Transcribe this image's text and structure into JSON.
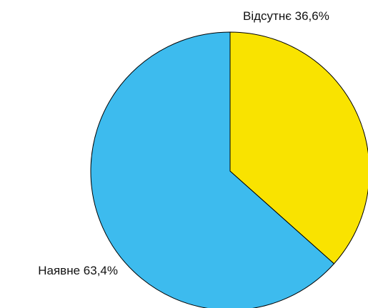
{
  "chart_data": {
    "type": "pie",
    "categories": [
      "Відсутнє",
      "Наявне"
    ],
    "values": [
      36.6,
      63.4
    ],
    "value_labels": [
      "36,6%",
      "63,4%"
    ],
    "colors": [
      "#f9e300",
      "#3dbbee"
    ]
  }
}
